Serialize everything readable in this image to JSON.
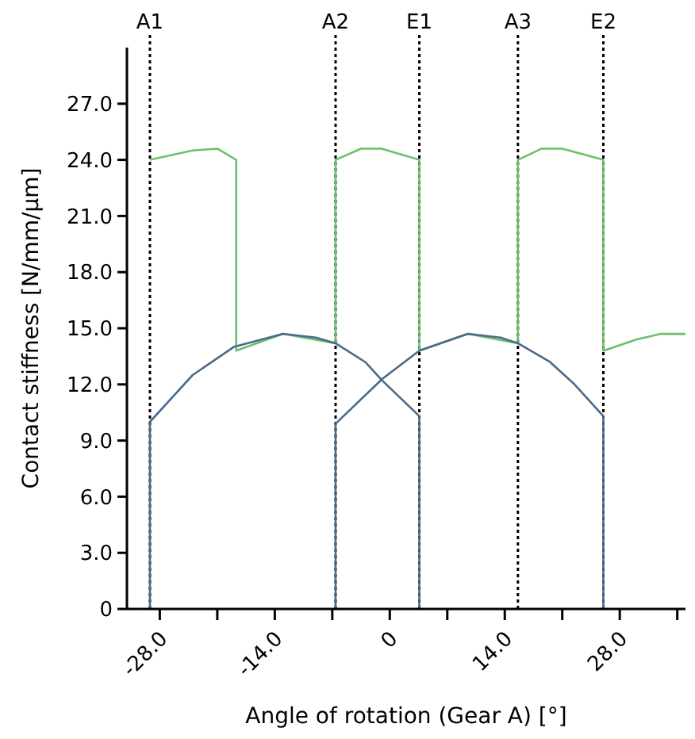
{
  "chart_data": {
    "type": "line",
    "xlabel": "Angle of rotation (Gear A) [°]",
    "ylabel": "Contact stiffness [N/mm/µm]",
    "xlim": [
      -32,
      36
    ],
    "ylim": [
      0,
      30
    ],
    "xticks": [
      {
        "value": -28,
        "label": "-28.0"
      },
      {
        "value": -21,
        "label": null
      },
      {
        "value": -14,
        "label": "-14.0"
      },
      {
        "value": -7,
        "label": null
      },
      0,
      {
        "value": 7,
        "label": null
      },
      {
        "value": 14,
        "label": "14.0"
      },
      {
        "value": 21,
        "label": null
      },
      {
        "value": 28,
        "label": "28.0"
      },
      {
        "value": 35,
        "label": null
      }
    ],
    "yticks": [
      0,
      {
        "value": 3,
        "label": "3.0"
      },
      {
        "value": 6,
        "label": "6.0"
      },
      {
        "value": 9,
        "label": "9.0"
      },
      {
        "value": 12,
        "label": "12.0"
      },
      {
        "value": 15,
        "label": "15.0"
      },
      {
        "value": 18,
        "label": "18.0"
      },
      {
        "value": 21,
        "label": "21.0"
      },
      {
        "value": 24,
        "label": "24.0"
      },
      {
        "value": 27,
        "label": "27.0"
      }
    ],
    "grid": false,
    "marker": "none",
    "line_style": "solid",
    "series": [
      {
        "color": "#6cbf6c",
        "x": [
          -29.2,
          -24,
          -21,
          -18.7,
          -18.7,
          -13,
          -6.6,
          -6.6,
          -3.5,
          -1,
          3.6,
          3.6,
          9.5,
          15.6,
          15.6,
          18.5,
          21,
          26,
          26,
          30,
          33,
          36
        ],
        "values": [
          24,
          24.5,
          24.6,
          24,
          13.8,
          14.7,
          14.2,
          24,
          24.6,
          24.6,
          24,
          13.8,
          14.7,
          14.2,
          24,
          24.6,
          24.6,
          24,
          13.8,
          14.4,
          14.7,
          14.7
        ]
      },
      {
        "color": "#4a6a8a",
        "x": [
          -29.2,
          -29.2,
          -24,
          -19,
          -13,
          -9,
          -6.6,
          -3,
          -0.9,
          3.6,
          3.6
        ],
        "values": [
          0,
          10,
          12.5,
          14,
          14.7,
          14.5,
          14.2,
          13.2,
          12.2,
          10.3,
          0
        ]
      },
      {
        "color": "#4a6a8a",
        "x": [
          -6.6,
          -6.6,
          -0.9,
          3.6,
          9.5,
          13.5,
          15.6,
          19.5,
          22.5,
          26,
          26
        ],
        "values": [
          0,
          9.9,
          12.3,
          13.8,
          14.7,
          14.5,
          14.2,
          13.2,
          12,
          10.3,
          0
        ]
      }
    ],
    "ref_lines": [
      {
        "axis": "x",
        "value": -29.2,
        "label": "A1",
        "color": "#000000",
        "line_style": "dotted"
      },
      {
        "axis": "x",
        "value": -6.6,
        "label": "A2",
        "color": "#000000",
        "line_style": "dotted"
      },
      {
        "axis": "x",
        "value": 3.6,
        "label": "E1",
        "color": "#000000",
        "line_style": "dotted"
      },
      {
        "axis": "x",
        "value": 15.6,
        "label": "A3",
        "color": "#000000",
        "line_style": "dotted"
      },
      {
        "axis": "x",
        "value": 26,
        "label": "E2",
        "color": "#000000",
        "line_style": "dotted"
      }
    ]
  }
}
